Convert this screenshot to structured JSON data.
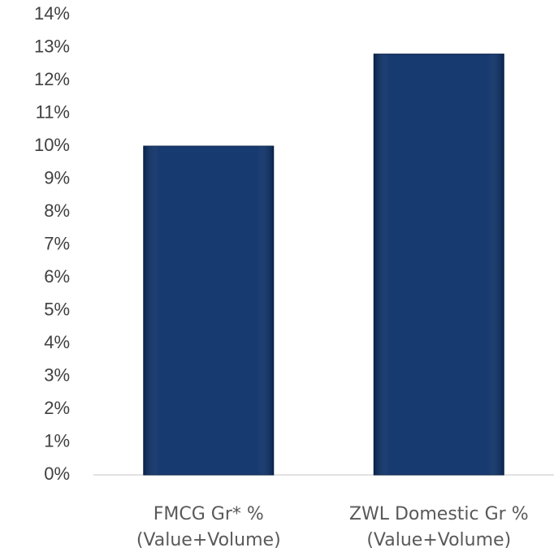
{
  "chart_data": {
    "type": "bar",
    "categories": [
      "FMCG Gr* %\n(Value+Volume)",
      "ZWL Domestic Gr %\n(Value+Volume)"
    ],
    "values": [
      10,
      12.8
    ],
    "color": "#0b3069",
    "ylim": [
      0,
      14
    ],
    "yticks": [
      {
        "value": 0,
        "label": "0%"
      },
      {
        "value": 1,
        "label": "1%"
      },
      {
        "value": 2,
        "label": "2%"
      },
      {
        "value": 3,
        "label": "3%"
      },
      {
        "value": 4,
        "label": "4%"
      },
      {
        "value": 5,
        "label": "5%"
      },
      {
        "value": 6,
        "label": "6%"
      },
      {
        "value": 7,
        "label": "7%"
      },
      {
        "value": 8,
        "label": "8%"
      },
      {
        "value": 9,
        "label": "9%"
      },
      {
        "value": 10,
        "label": "10%"
      },
      {
        "value": 11,
        "label": "11%"
      },
      {
        "value": 12,
        "label": "12%"
      },
      {
        "value": 13,
        "label": "13%"
      },
      {
        "value": 14,
        "label": "14%"
      }
    ],
    "grid": false
  }
}
